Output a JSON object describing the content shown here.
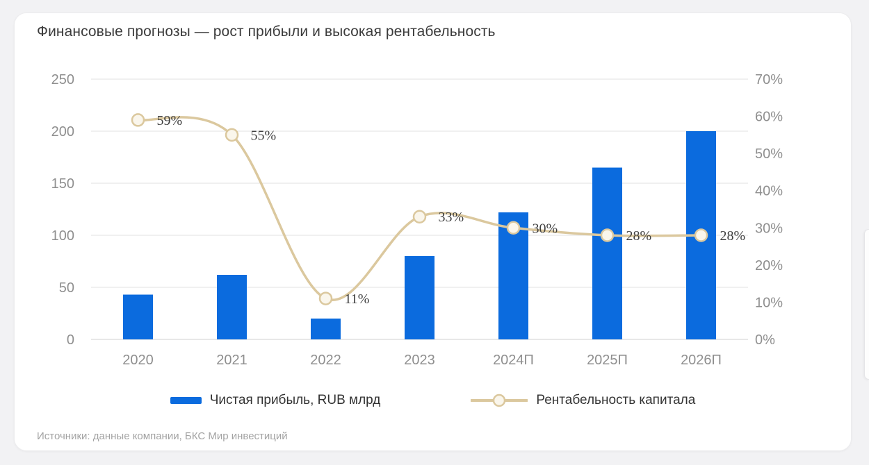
{
  "title": "Финансовые прогнозы — рост прибыли и высокая рентабельность",
  "source": "Источники: данные компании, БКС Мир инвестиций",
  "legend": {
    "bar_label": "Чистая прибыль, RUB млрд",
    "line_label": "Рентабельность капитала"
  },
  "colors": {
    "bar": "#0b6bde",
    "line": "#dbc89e",
    "marker_fill": "#faf6ec",
    "grid": "#e1e1e1",
    "axis_text": "#8f8f8f",
    "point_label_text": "#3f3f3f",
    "title_text": "#3b3b3b",
    "source_text": "#a3a3a3",
    "page_bg": "#f2f2f4",
    "card_bg": "#ffffff"
  },
  "chart_data": {
    "type": "combo-bar-line",
    "title": "Финансовые прогнозы — рост прибыли и высокая рентабельность",
    "categories": [
      "2020",
      "2021",
      "2022",
      "2023",
      "2024П",
      "2025П",
      "2026П"
    ],
    "series": [
      {
        "name": "Чистая прибыль, RUB млрд",
        "type": "bar",
        "axis": "left",
        "values": [
          43,
          62,
          20,
          80,
          122,
          165,
          200
        ]
      },
      {
        "name": "Рентабельность капитала",
        "type": "line",
        "axis": "right",
        "values": [
          59,
          55,
          11,
          33,
          30,
          28,
          28
        ],
        "point_labels": [
          "59%",
          "55%",
          "11%",
          "33%",
          "30%",
          "28%",
          "28%"
        ]
      }
    ],
    "left_axis": {
      "min": 0,
      "max": 250,
      "tick_step": 50,
      "ticks": [
        0,
        50,
        100,
        150,
        200,
        250
      ]
    },
    "right_axis": {
      "min": 0,
      "max": 70,
      "tick_step": 10,
      "tick_labels": [
        "0%",
        "10%",
        "20%",
        "30%",
        "40%",
        "50%",
        "60%",
        "70%"
      ]
    },
    "grid": "horizontal",
    "legend_position": "bottom"
  }
}
